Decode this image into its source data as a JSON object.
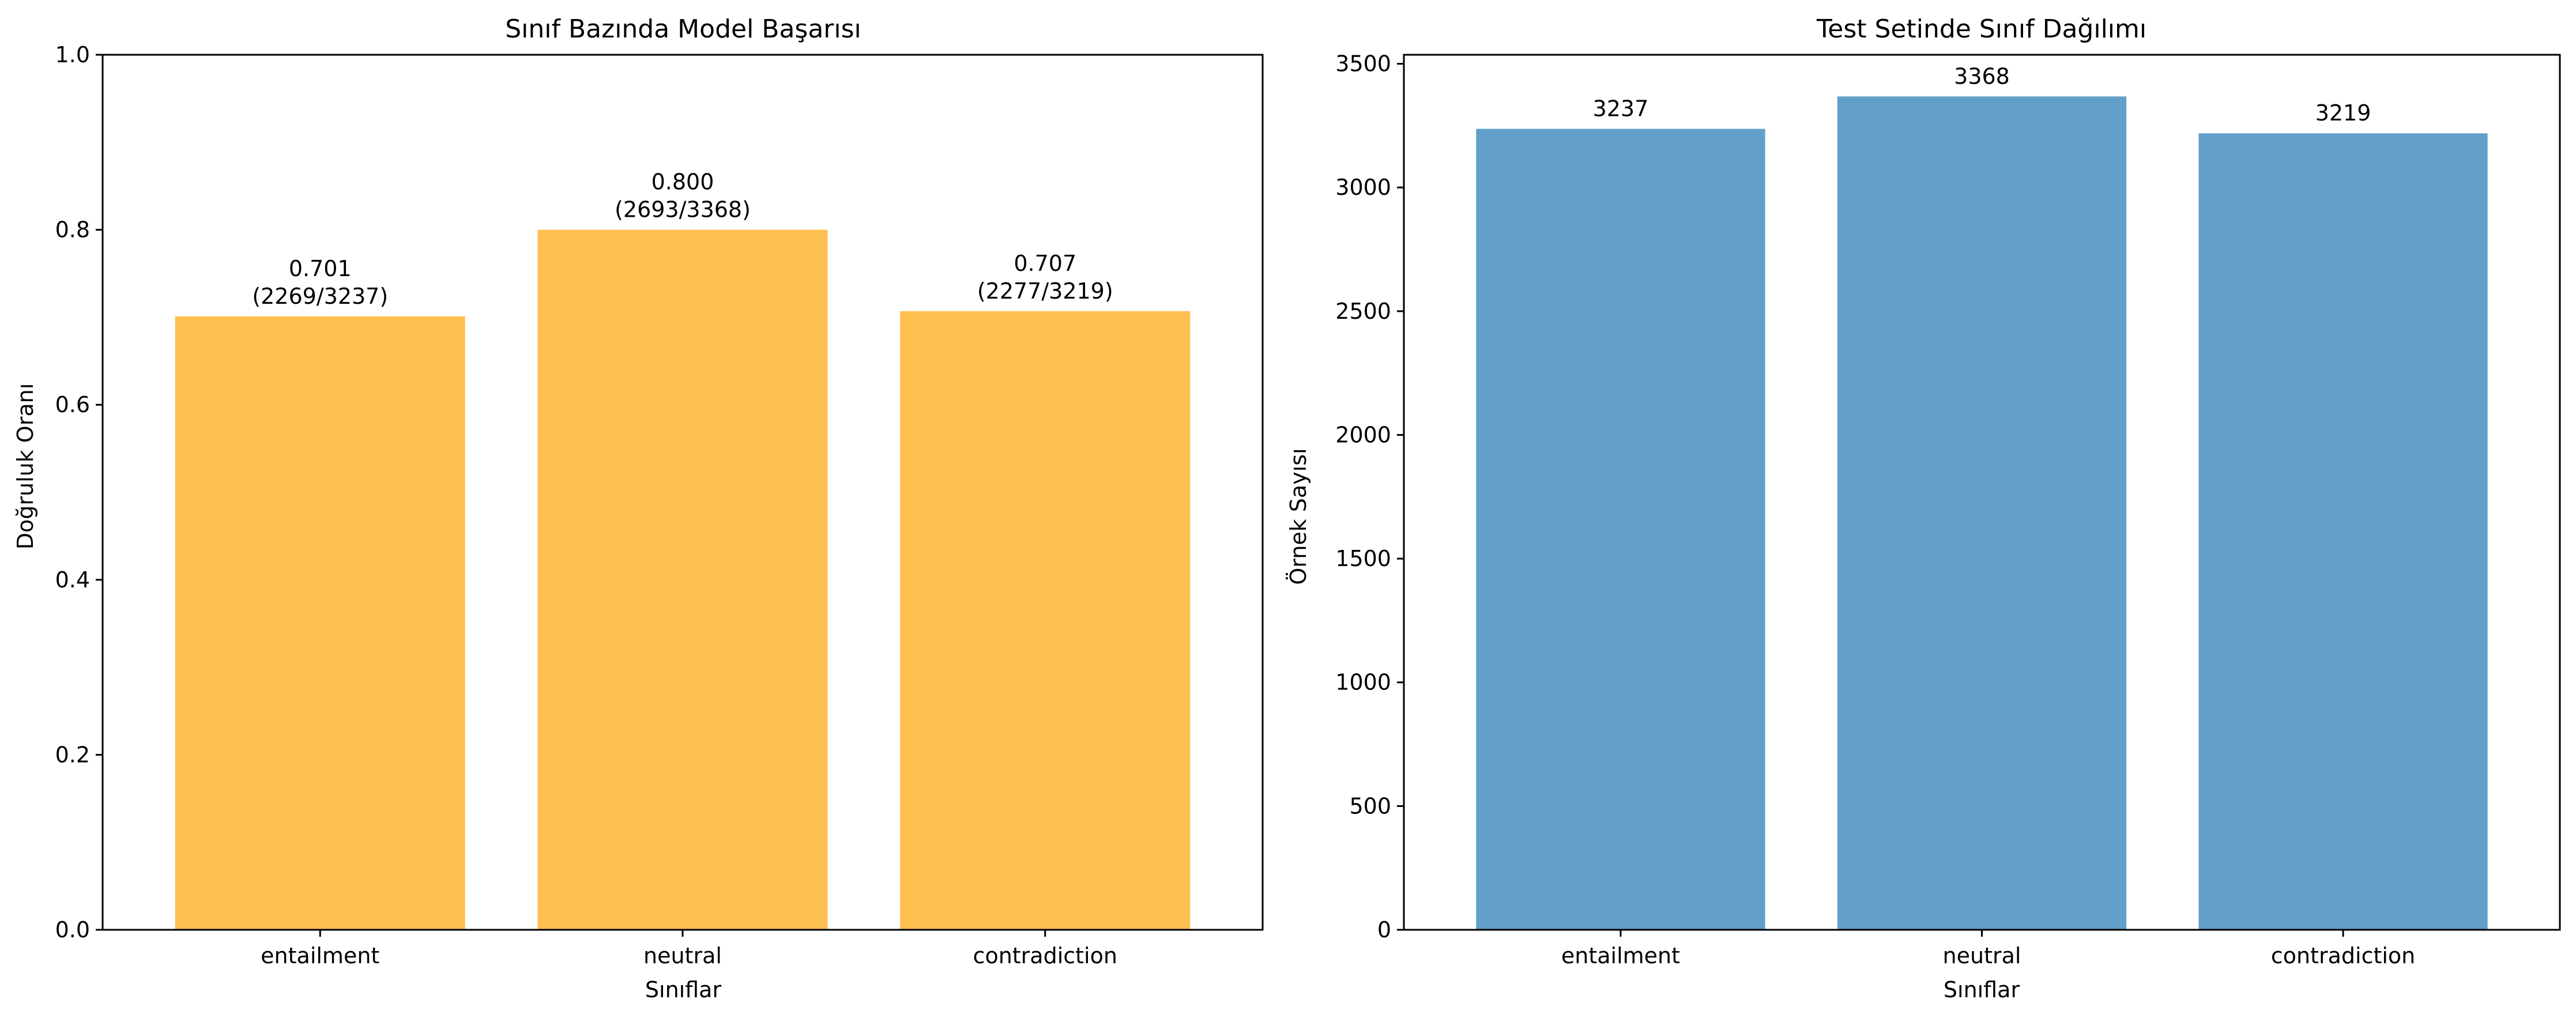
{
  "colors": {
    "left_bar": "#fdbf50",
    "right_bar": "#62a0ca",
    "axis": "#000000",
    "background": "#ffffff"
  },
  "chart_data": [
    {
      "type": "bar",
      "title": "Sınıf Bazında Model Başarısı",
      "xlabel": "Sınıflar",
      "ylabel": "Doğruluk Oranı",
      "categories": [
        "entailment",
        "neutral",
        "contradiction"
      ],
      "values": [
        0.701,
        0.8,
        0.707
      ],
      "data_labels": [
        [
          "0.701",
          "(2269/3237)"
        ],
        [
          "0.800",
          "(2693/3368)"
        ],
        [
          "0.707",
          "(2277/3219)"
        ]
      ],
      "ylim": [
        0,
        1.0
      ],
      "yticks": [
        0.0,
        0.2,
        0.4,
        0.6,
        0.8,
        1.0
      ],
      "ytick_labels": [
        "0.0",
        "0.2",
        "0.4",
        "0.6",
        "0.8",
        "1.0"
      ],
      "grid": false,
      "legend": "none"
    },
    {
      "type": "bar",
      "title": "Test Setinde Sınıf Dağılımı",
      "xlabel": "Sınıflar",
      "ylabel": "Örnek Sayısı",
      "categories": [
        "entailment",
        "neutral",
        "contradiction"
      ],
      "values": [
        3237,
        3368,
        3219
      ],
      "data_labels": [
        [
          "3237"
        ],
        [
          "3368"
        ],
        [
          "3219"
        ]
      ],
      "ylim": [
        0,
        3536.4
      ],
      "yticks": [
        0,
        500,
        1000,
        1500,
        2000,
        2500,
        3000,
        3500
      ],
      "ytick_labels": [
        "0",
        "500",
        "1000",
        "1500",
        "2000",
        "2500",
        "3000",
        "3500"
      ],
      "grid": false,
      "legend": "none"
    }
  ]
}
